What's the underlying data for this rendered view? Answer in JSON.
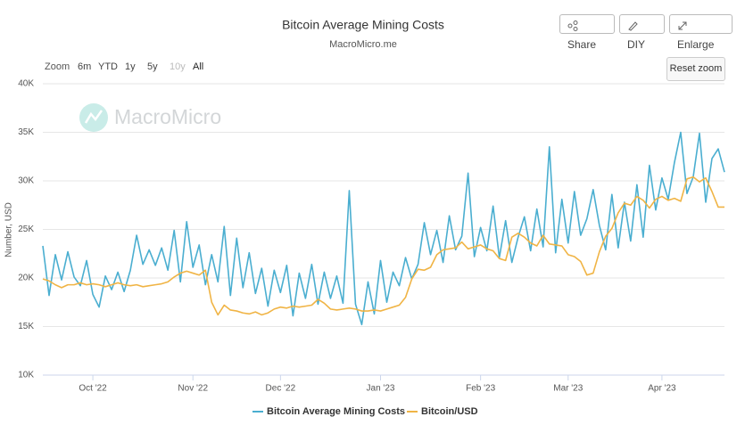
{
  "chart_data": {
    "type": "line",
    "title": "Bitcoin Average Mining Costs",
    "subtitle": "MacroMicro.me",
    "y_label": "Number, USD",
    "categories": [
      null,
      null,
      null,
      null,
      null,
      null,
      null,
      null,
      "Oct '22",
      null,
      null,
      null,
      null,
      null,
      null,
      null,
      null,
      null,
      null,
      null,
      null,
      null,
      null,
      null,
      "Nov '22",
      null,
      null,
      null,
      null,
      null,
      null,
      null,
      null,
      null,
      null,
      null,
      null,
      null,
      "Dec '22",
      null,
      null,
      null,
      null,
      null,
      null,
      null,
      null,
      null,
      null,
      null,
      null,
      null,
      null,
      null,
      "Jan '23",
      null,
      null,
      null,
      null,
      null,
      null,
      null,
      null,
      null,
      null,
      null,
      null,
      null,
      null,
      null,
      "Feb '23",
      null,
      null,
      null,
      null,
      null,
      null,
      null,
      null,
      null,
      null,
      null,
      null,
      null,
      "Mar '23",
      null,
      null,
      null,
      null,
      null,
      null,
      null,
      null,
      null,
      null,
      null,
      null,
      null,
      null,
      "Apr '23",
      null,
      null,
      null,
      null,
      null,
      null,
      null,
      null,
      null,
      null
    ],
    "series": [
      {
        "name": "Bitcoin Average Mining Costs",
        "color": "#4aaed0",
        "values": [
          23300,
          18200,
          22400,
          19800,
          22700,
          20100,
          19200,
          21800,
          18300,
          17000,
          20200,
          18800,
          20600,
          18600,
          20800,
          24400,
          21400,
          22900,
          21300,
          23100,
          20800,
          24900,
          19600,
          25800,
          21100,
          23400,
          19300,
          22400,
          19600,
          25300,
          18200,
          24100,
          19000,
          22600,
          18400,
          21000,
          17100,
          20800,
          18500,
          21300,
          16100,
          20500,
          17900,
          21400,
          17300,
          20600,
          17900,
          20200,
          17400,
          29000,
          17300,
          15200,
          19600,
          16300,
          21800,
          17500,
          20600,
          19200,
          22100,
          19900,
          21400,
          25700,
          22400,
          24900,
          21600,
          26400,
          22900,
          24300,
          30800,
          22200,
          25200,
          22800,
          27400,
          22100,
          25900,
          21600,
          24200,
          26300,
          22800,
          27100,
          23200,
          33500,
          22600,
          28100,
          23600,
          28900,
          24400,
          26100,
          29100,
          25400,
          22900,
          28600,
          23100,
          27800,
          23800,
          29600,
          24200,
          31600,
          27000,
          30300,
          28100,
          31900,
          35000,
          28700,
          30400,
          34900,
          27800,
          32300,
          33300,
          30900
        ]
      },
      {
        "name": "Bitcoin/USD",
        "color": "#f0b445",
        "values": [
          19900,
          19700,
          19300,
          19000,
          19300,
          19300,
          19500,
          19300,
          19400,
          19300,
          19100,
          19300,
          19500,
          19300,
          19200,
          19300,
          19100,
          19200,
          19300,
          19400,
          19600,
          20100,
          20500,
          20700,
          20500,
          20300,
          20800,
          17500,
          16200,
          17200,
          16700,
          16600,
          16400,
          16300,
          16500,
          16200,
          16400,
          16800,
          17000,
          16900,
          17100,
          17000,
          17100,
          17200,
          17800,
          17400,
          16800,
          16700,
          16800,
          16900,
          16800,
          16600,
          16600,
          16700,
          16600,
          16800,
          17000,
          17200,
          18000,
          19900,
          20900,
          20800,
          21100,
          22400,
          22900,
          23000,
          23100,
          23700,
          23000,
          23200,
          23400,
          23000,
          22800,
          22000,
          21800,
          24200,
          24600,
          24200,
          23600,
          23300,
          24400,
          23500,
          23400,
          23300,
          22400,
          22200,
          21700,
          20300,
          20500,
          22700,
          24300,
          25100,
          26700,
          27700,
          27500,
          28400,
          28000,
          27200,
          28100,
          28400,
          28000,
          28200,
          27900,
          30200,
          30400,
          29900,
          30300,
          28900,
          27300,
          27300
        ]
      }
    ],
    "ylim": [
      10000,
      40000
    ],
    "yticks": [
      {
        "value": 10000,
        "label": "10K"
      },
      {
        "value": 15000,
        "label": "15K"
      },
      {
        "value": 20000,
        "label": "20K"
      },
      {
        "value": 25000,
        "label": "25K"
      },
      {
        "value": 30000,
        "label": "30K"
      },
      {
        "value": 35000,
        "label": "35K"
      },
      {
        "value": 40000,
        "label": "40K"
      }
    ],
    "grid": true
  },
  "toolbar": {
    "buttons": [
      "Share",
      "DIY",
      "Enlarge"
    ],
    "reset": "Reset zoom"
  },
  "range_selector": {
    "label": "Zoom",
    "options": [
      "6m",
      "YTD",
      "1y",
      "5y",
      "10y",
      "All"
    ]
  },
  "watermark": "MacroMicro"
}
